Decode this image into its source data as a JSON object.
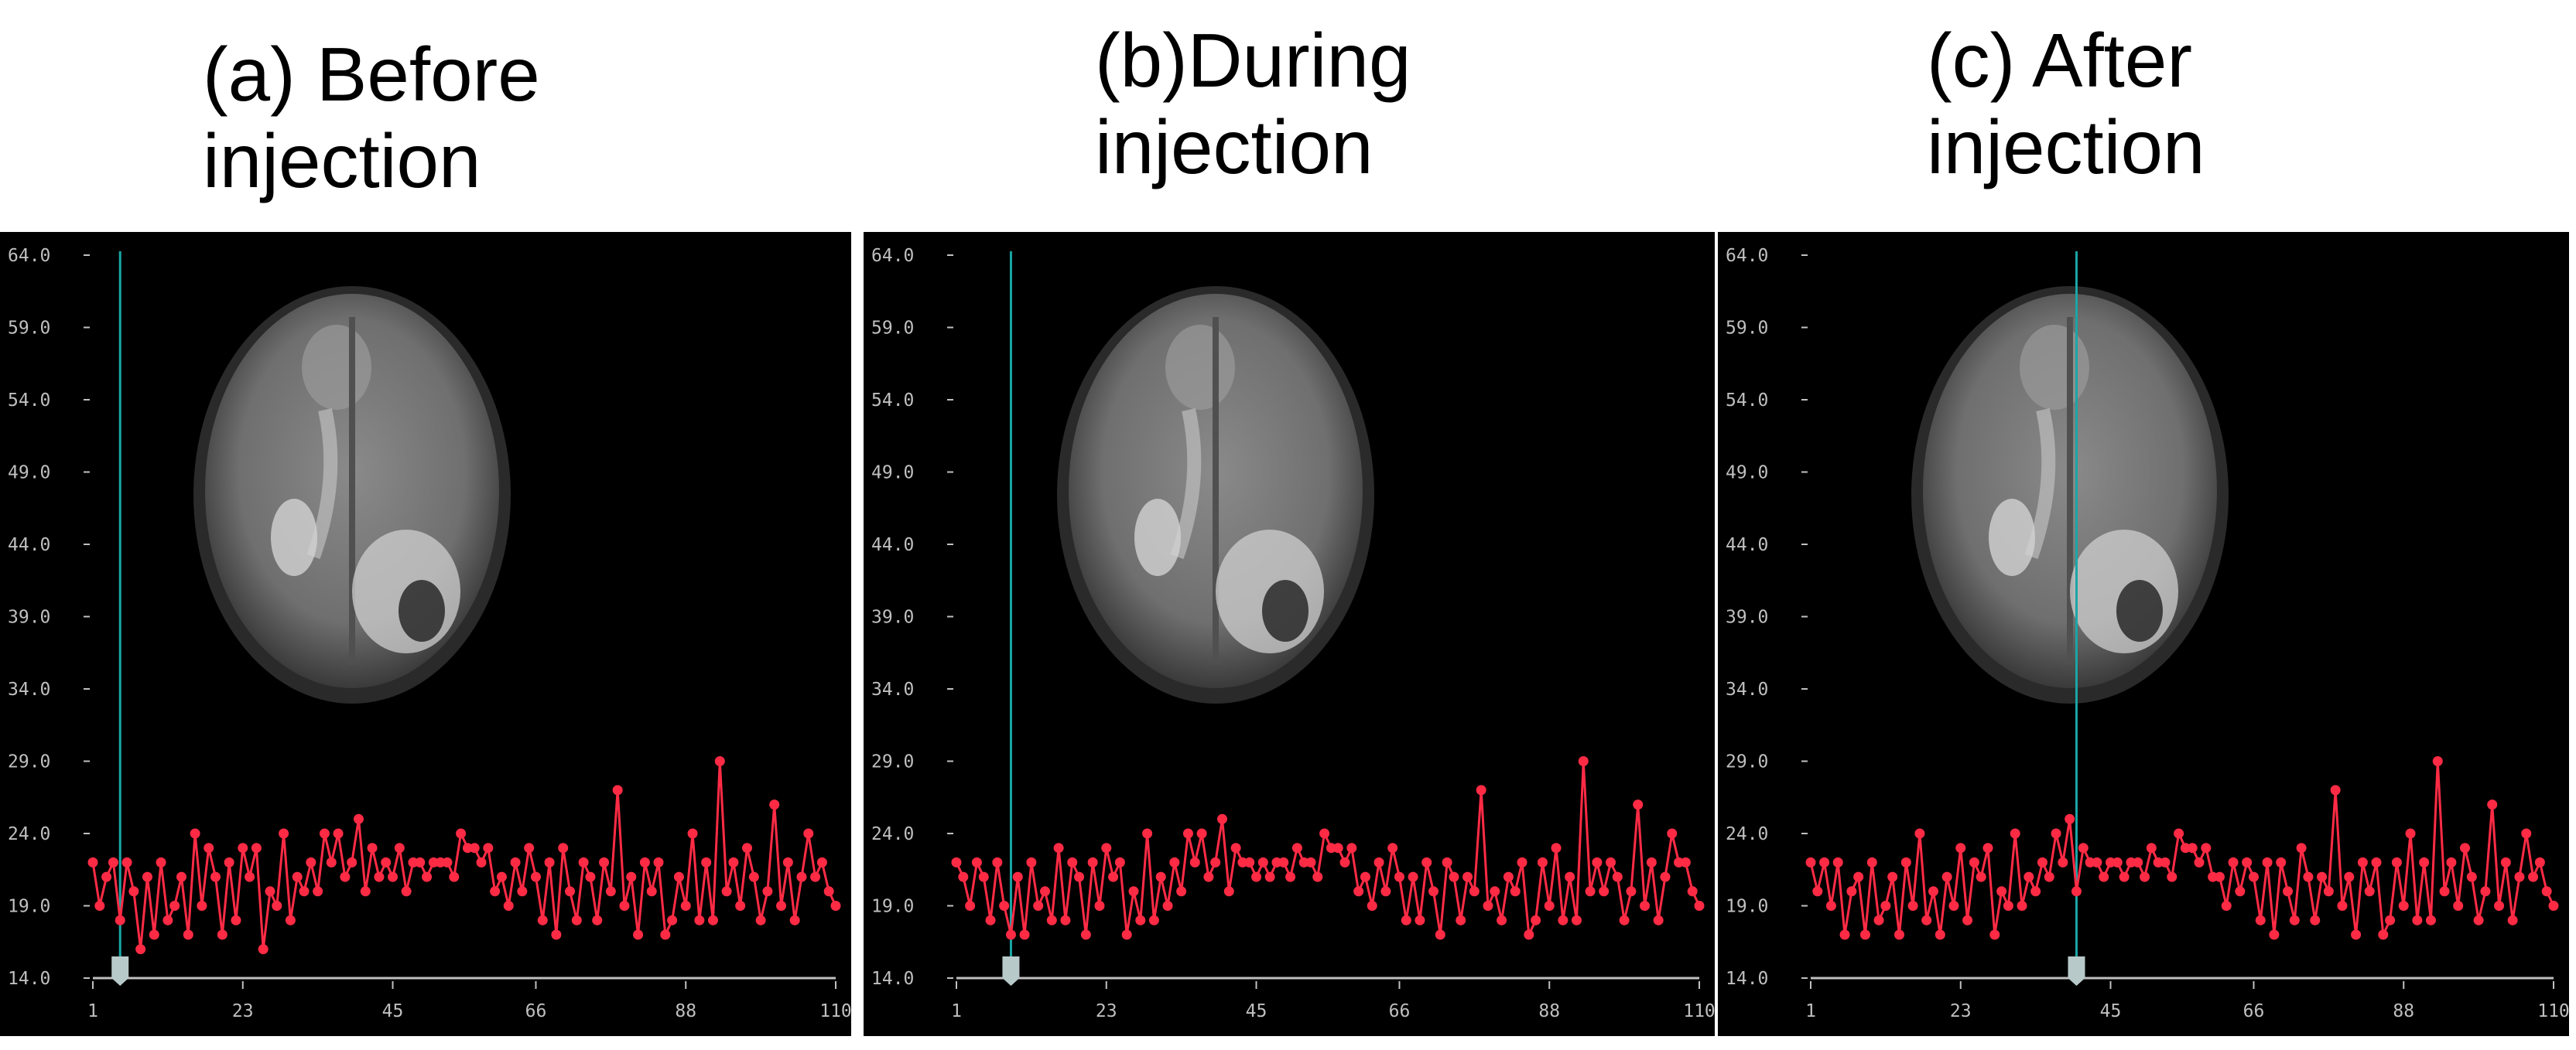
{
  "colors": {
    "series": "#ff2b45",
    "cursor": "#1aa6a6",
    "axis": "#c0c0c0",
    "background": "#000000",
    "handle": "#b8c9c9"
  },
  "chart_data": [
    {
      "type": "line",
      "title_lines": [
        "(a) Before",
        "injection"
      ],
      "x_ticks": [
        "1",
        "23",
        "45",
        "66",
        "88",
        "110"
      ],
      "y_ticks": [
        "64.0",
        "59.0",
        "54.0",
        "49.0",
        "44.0",
        "39.0",
        "34.0",
        "29.0",
        "24.0",
        "19.0",
        "14.0"
      ],
      "xlim": [
        1,
        110
      ],
      "ylim": [
        14,
        64
      ],
      "cursor_x": 5,
      "grid": false,
      "background_image": "axial-brain-mri",
      "series": [
        {
          "values": [
            22,
            19,
            21,
            22,
            18,
            22,
            20,
            16,
            21,
            17,
            22,
            18,
            19,
            21,
            17,
            24,
            19,
            23,
            21,
            17,
            22,
            18,
            23,
            21,
            23,
            16,
            20,
            19,
            24,
            18,
            21,
            20,
            22,
            20,
            24,
            22,
            24,
            21,
            22,
            25,
            20,
            23,
            21,
            22,
            21,
            23,
            20,
            22,
            22,
            21,
            22,
            22,
            22,
            21,
            24,
            23,
            23,
            22,
            23,
            20,
            21,
            19,
            22,
            20,
            23,
            21,
            18,
            22,
            17,
            23,
            20,
            18,
            22,
            21,
            18,
            22,
            20,
            27,
            19,
            21,
            17,
            22,
            20,
            22,
            17,
            18,
            21,
            19,
            24,
            18,
            22,
            18,
            29,
            20,
            22,
            19,
            23,
            21,
            18,
            20,
            26,
            19,
            22,
            18,
            21,
            24,
            21,
            22,
            20,
            19
          ]
        }
      ]
    },
    {
      "type": "line",
      "title_lines": [
        "(b)During",
        "injection"
      ],
      "x_ticks": [
        "1",
        "23",
        "45",
        "66",
        "88",
        "110"
      ],
      "y_ticks": [
        "64.0",
        "59.0",
        "54.0",
        "49.0",
        "44.0",
        "39.0",
        "34.0",
        "29.0",
        "24.0",
        "19.0",
        "14.0"
      ],
      "xlim": [
        1,
        110
      ],
      "ylim": [
        14,
        64
      ],
      "cursor_x": 9,
      "grid": false,
      "background_image": "axial-brain-mri",
      "series": [
        {
          "values": [
            22,
            21,
            19,
            22,
            21,
            18,
            22,
            19,
            17,
            21,
            17,
            22,
            19,
            20,
            18,
            23,
            18,
            22,
            21,
            17,
            22,
            19,
            23,
            21,
            22,
            17,
            20,
            18,
            24,
            18,
            21,
            19,
            22,
            20,
            24,
            22,
            24,
            21,
            22,
            25,
            20,
            23,
            22,
            22,
            21,
            22,
            21,
            22,
            22,
            21,
            23,
            22,
            22,
            21,
            24,
            23,
            23,
            22,
            23,
            20,
            21,
            19,
            22,
            20,
            23,
            21,
            18,
            21,
            18,
            22,
            20,
            17,
            22,
            21,
            18,
            21,
            20,
            27,
            19,
            20,
            18,
            21,
            20,
            22,
            17,
            18,
            22,
            19,
            23,
            18,
            21,
            18,
            29,
            20,
            22,
            20,
            22,
            21,
            18,
            20,
            26,
            19,
            22,
            18,
            21,
            24,
            22,
            22,
            20,
            19
          ]
        }
      ]
    },
    {
      "type": "line",
      "title_lines": [
        "(c) After",
        "injection"
      ],
      "x_ticks": [
        "1",
        "23",
        "45",
        "66",
        "88",
        "110"
      ],
      "y_ticks": [
        "64.0",
        "59.0",
        "54.0",
        "49.0",
        "44.0",
        "39.0",
        "34.0",
        "29.0",
        "24.0",
        "19.0",
        "14.0"
      ],
      "xlim": [
        1,
        110
      ],
      "ylim": [
        14,
        64
      ],
      "cursor_x": 40,
      "grid": false,
      "background_image": "axial-brain-mri",
      "series": [
        {
          "values": [
            22,
            20,
            22,
            19,
            22,
            17,
            20,
            21,
            17,
            22,
            18,
            19,
            21,
            17,
            22,
            19,
            24,
            18,
            20,
            17,
            21,
            19,
            23,
            18,
            22,
            21,
            23,
            17,
            20,
            19,
            24,
            19,
            21,
            20,
            22,
            21,
            24,
            22,
            25,
            20,
            23,
            22,
            22,
            21,
            22,
            22,
            21,
            22,
            22,
            21,
            23,
            22,
            22,
            21,
            24,
            23,
            23,
            22,
            23,
            21,
            21,
            19,
            22,
            20,
            22,
            21,
            18,
            22,
            17,
            22,
            20,
            18,
            23,
            21,
            18,
            21,
            20,
            27,
            19,
            21,
            17,
            22,
            20,
            22,
            17,
            18,
            22,
            19,
            24,
            18,
            22,
            18,
            29,
            20,
            22,
            19,
            23,
            21,
            18,
            20,
            26,
            19,
            22,
            18,
            21,
            24,
            21,
            22,
            20,
            19
          ]
        }
      ]
    }
  ]
}
